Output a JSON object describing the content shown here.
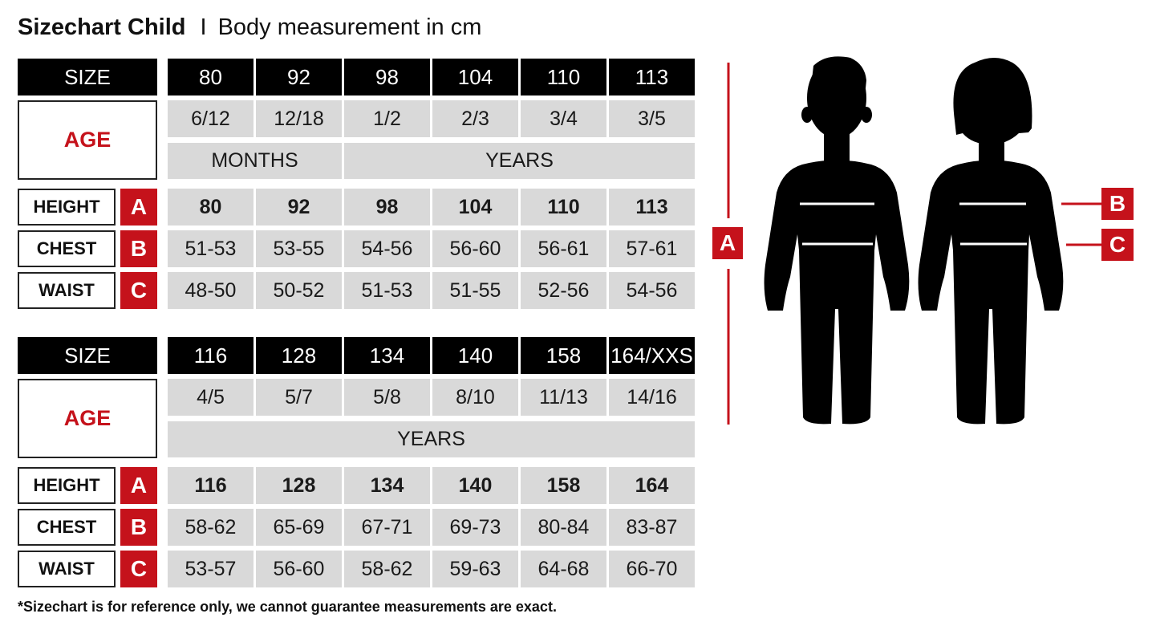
{
  "title": {
    "main": "Sizechart Child",
    "separator": "I",
    "subtitle": "Body measurement in cm"
  },
  "labels": {
    "size": "SIZE",
    "age": "AGE",
    "height": "HEIGHT",
    "chest": "CHEST",
    "waist": "WAIST",
    "letter_height": "A",
    "letter_chest": "B",
    "letter_waist": "C"
  },
  "tables": [
    {
      "sizes": [
        "80",
        "92",
        "98",
        "104",
        "110",
        "113"
      ],
      "ages": [
        "6/12",
        "12/18",
        "1/2",
        "2/3",
        "3/4",
        "3/5"
      ],
      "age_units": [
        {
          "label": "MONTHS",
          "span": 2
        },
        {
          "label": "YEARS",
          "span": 4
        }
      ],
      "height": [
        "80",
        "92",
        "98",
        "104",
        "110",
        "113"
      ],
      "chest": [
        "51-53",
        "53-55",
        "54-56",
        "56-60",
        "56-61",
        "57-61"
      ],
      "waist": [
        "48-50",
        "50-52",
        "51-53",
        "51-55",
        "52-56",
        "54-56"
      ]
    },
    {
      "sizes": [
        "116",
        "128",
        "134",
        "140",
        "158",
        "164/XXS"
      ],
      "ages": [
        "4/5",
        "5/7",
        "5/8",
        "8/10",
        "11/13",
        "14/16"
      ],
      "age_units": [
        {
          "label": "YEARS",
          "span": 6
        }
      ],
      "height": [
        "116",
        "128",
        "134",
        "140",
        "158",
        "164"
      ],
      "chest": [
        "58-62",
        "65-69",
        "67-71",
        "69-73",
        "80-84",
        "83-87"
      ],
      "waist": [
        "53-57",
        "56-60",
        "58-62",
        "59-63",
        "64-68",
        "66-70"
      ]
    }
  ],
  "figure": {
    "marker_a": "A",
    "marker_b": "B",
    "marker_c": "C",
    "figures": [
      "boy-silhouette",
      "girl-silhouette"
    ]
  },
  "footnote": "*Sizechart is for reference only, we cannot guarantee measurements are exact.",
  "colors": {
    "accent_red": "#c5121b",
    "header_black": "#000000",
    "cell_gray": "#d9d9d9"
  }
}
